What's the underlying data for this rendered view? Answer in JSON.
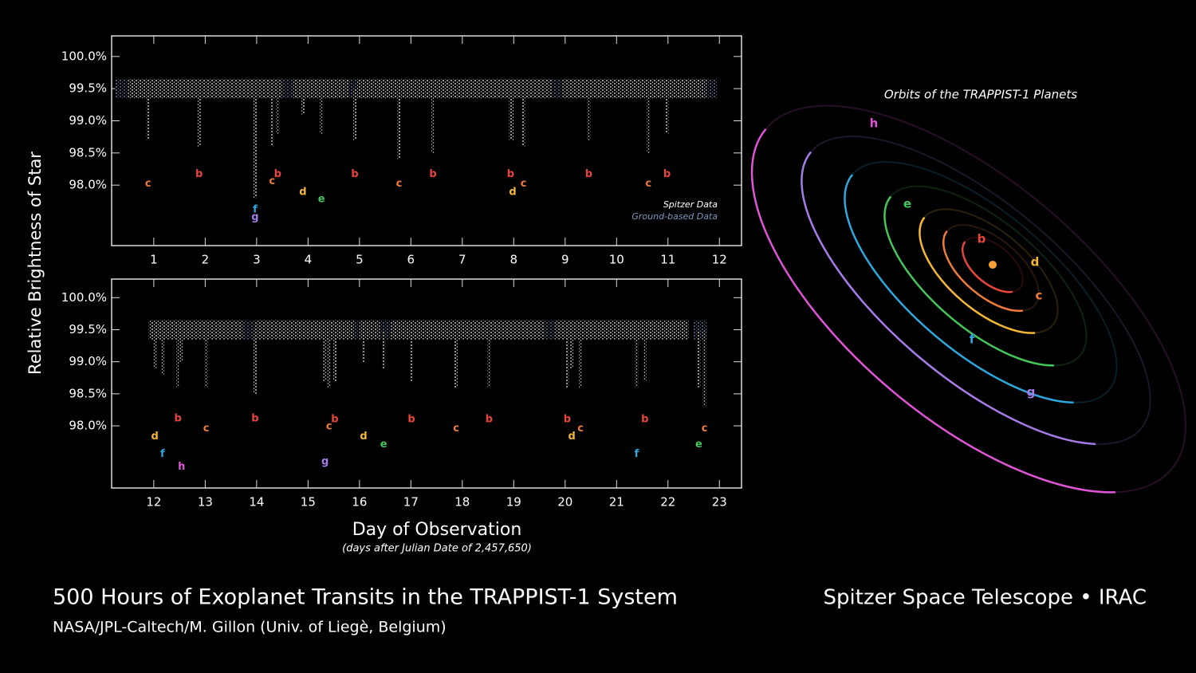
{
  "figure": {
    "title": "500 Hours of Exoplanet Transits in the TRAPPIST-1 System",
    "credit": "NASA/JPL-Caltech/M. Gillon (Univ. of Liegè, Belgium)",
    "instrument": "Spitzer Space Telescope • IRAC",
    "ylabel": "Relative Brightness of Star",
    "xlabel": "Day of Observation",
    "xnote": "(days after Julian Date of 2,457,650)"
  },
  "chart_data": [
    {
      "type": "transit",
      "xlim": [
        0.18,
        12.43
      ],
      "ylim": [
        97.06,
        100.32
      ],
      "baseline": 99.5,
      "legend": "lower right",
      "xticks": [
        1,
        2,
        3,
        4,
        5,
        6,
        7,
        8,
        9,
        10,
        11,
        12
      ],
      "yticks": [
        {
          "value": 98.0,
          "label": "98.0%"
        },
        {
          "value": 98.5,
          "label": "98.5%"
        },
        {
          "value": 99.0,
          "label": "99.0%"
        },
        {
          "value": 99.5,
          "label": "99.5%"
        },
        {
          "value": 100.0,
          "label": "100.0%"
        }
      ],
      "series": [
        {
          "name": "Spitzer Data",
          "color": "#ffffff",
          "segments": [
            [
              0.5,
              3.5
            ],
            [
              3.7,
              4.8
            ],
            [
              4.95,
              8.75
            ],
            [
              8.95,
              11.75
            ]
          ]
        },
        {
          "name": "Ground-based Data",
          "color": "#7f96c0",
          "segments": [
            [
              0.25,
              0.5
            ],
            [
              3.5,
              3.7
            ],
            [
              4.8,
              4.95
            ],
            [
              8.75,
              8.95
            ],
            [
              11.75,
              11.95
            ]
          ]
        }
      ],
      "transits": [
        {
          "planet": "c",
          "x": 0.89,
          "y": 98.02,
          "depth": 98.7
        },
        {
          "planet": "b",
          "x": 1.88,
          "y": 98.17,
          "depth": 98.6
        },
        {
          "planet": "f",
          "x": 2.97,
          "y": 97.62,
          "depth": 97.8
        },
        {
          "planet": "g",
          "x": 2.97,
          "y": 97.5,
          "depth": 97.8
        },
        {
          "planet": "c",
          "x": 3.3,
          "y": 98.06,
          "depth": 98.6
        },
        {
          "planet": "b",
          "x": 3.41,
          "y": 98.17,
          "depth": 98.8
        },
        {
          "planet": "d",
          "x": 3.9,
          "y": 97.89,
          "depth": 99.1
        },
        {
          "planet": "e",
          "x": 4.26,
          "y": 97.78,
          "depth": 98.8
        },
        {
          "planet": "b",
          "x": 4.91,
          "y": 98.17,
          "depth": 98.7
        },
        {
          "planet": "c",
          "x": 5.77,
          "y": 98.02,
          "depth": 98.4
        },
        {
          "planet": "b",
          "x": 6.43,
          "y": 98.17,
          "depth": 98.5
        },
        {
          "planet": "b",
          "x": 7.94,
          "y": 98.17,
          "depth": 98.7
        },
        {
          "planet": "d",
          "x": 7.98,
          "y": 97.89,
          "depth": 98.7
        },
        {
          "planet": "c",
          "x": 8.19,
          "y": 98.02,
          "depth": 98.6
        },
        {
          "planet": "b",
          "x": 9.46,
          "y": 98.17,
          "depth": 98.7
        },
        {
          "planet": "c",
          "x": 10.62,
          "y": 98.02,
          "depth": 98.5
        },
        {
          "planet": "b",
          "x": 10.98,
          "y": 98.17,
          "depth": 98.8
        }
      ]
    },
    {
      "type": "transit",
      "xlim": [
        11.18,
        23.43
      ],
      "ylim": [
        97.03,
        100.29
      ],
      "baseline": 99.5,
      "xticks": [
        12,
        13,
        14,
        15,
        16,
        17,
        18,
        19,
        20,
        21,
        22,
        23
      ],
      "yticks": [
        {
          "value": 98.0,
          "label": "98.0%"
        },
        {
          "value": 98.5,
          "label": "98.5%"
        },
        {
          "value": 99.0,
          "label": "99.0%"
        },
        {
          "value": 99.5,
          "label": "99.5%"
        },
        {
          "value": 100.0,
          "label": "100.0%"
        }
      ],
      "series": [
        {
          "color": "#ffffff",
          "segments": [
            [
              11.9,
              13.75
            ],
            [
              13.95,
              15.9
            ],
            [
              16.0,
              16.4
            ],
            [
              16.6,
              19.6
            ],
            [
              19.8,
              22.4
            ]
          ]
        },
        {
          "color": "#7f96c0",
          "segments": [
            [
              13.75,
              13.95
            ],
            [
              15.9,
              16.0
            ],
            [
              16.4,
              16.6
            ],
            [
              19.6,
              19.8
            ],
            [
              22.5,
              22.75
            ]
          ]
        }
      ],
      "transits": [
        {
          "planet": "d",
          "x": 12.02,
          "y": 97.83,
          "depth": 98.9
        },
        {
          "planet": "f",
          "x": 12.17,
          "y": 97.56,
          "depth": 98.8
        },
        {
          "planet": "b",
          "x": 12.47,
          "y": 98.11,
          "depth": 98.6
        },
        {
          "planet": "h",
          "x": 12.54,
          "y": 97.36,
          "depth": 99.0
        },
        {
          "planet": "c",
          "x": 13.02,
          "y": 97.96,
          "depth": 98.6
        },
        {
          "planet": "b",
          "x": 13.97,
          "y": 98.11,
          "depth": 98.5
        },
        {
          "planet": "g",
          "x": 15.33,
          "y": 97.44,
          "depth": 98.7
        },
        {
          "planet": "c",
          "x": 15.41,
          "y": 97.99,
          "depth": 98.6
        },
        {
          "planet": "b",
          "x": 15.52,
          "y": 98.1,
          "depth": 98.7
        },
        {
          "planet": "d",
          "x": 16.08,
          "y": 97.83,
          "depth": 99.0
        },
        {
          "planet": "e",
          "x": 16.47,
          "y": 97.71,
          "depth": 98.9
        },
        {
          "planet": "b",
          "x": 17.01,
          "y": 98.1,
          "depth": 98.7
        },
        {
          "planet": "c",
          "x": 17.88,
          "y": 97.96,
          "depth": 98.6
        },
        {
          "planet": "b",
          "x": 18.52,
          "y": 98.1,
          "depth": 98.6
        },
        {
          "planet": "b",
          "x": 20.04,
          "y": 98.1,
          "depth": 98.6
        },
        {
          "planet": "d",
          "x": 20.13,
          "y": 97.83,
          "depth": 98.9
        },
        {
          "planet": "c",
          "x": 20.3,
          "y": 97.96,
          "depth": 98.6
        },
        {
          "planet": "f",
          "x": 21.39,
          "y": 97.56,
          "depth": 98.6
        },
        {
          "planet": "b",
          "x": 21.55,
          "y": 98.1,
          "depth": 98.7
        },
        {
          "planet": "e",
          "x": 22.6,
          "y": 97.71,
          "depth": 98.6
        },
        {
          "planet": "c",
          "x": 22.71,
          "y": 97.96,
          "depth": 98.3
        }
      ]
    }
  ],
  "orbits": {
    "title": "Orbits of the TRAPPIST-1 Planets",
    "planets": [
      {
        "name": "b",
        "color": "#e8453c"
      },
      {
        "name": "c",
        "color": "#f07b3a"
      },
      {
        "name": "d",
        "color": "#f5b735"
      },
      {
        "name": "e",
        "color": "#44c75a"
      },
      {
        "name": "f",
        "color": "#2fa8e0"
      },
      {
        "name": "g",
        "color": "#a77be8"
      },
      {
        "name": "h",
        "color": "#e055d8"
      }
    ]
  }
}
